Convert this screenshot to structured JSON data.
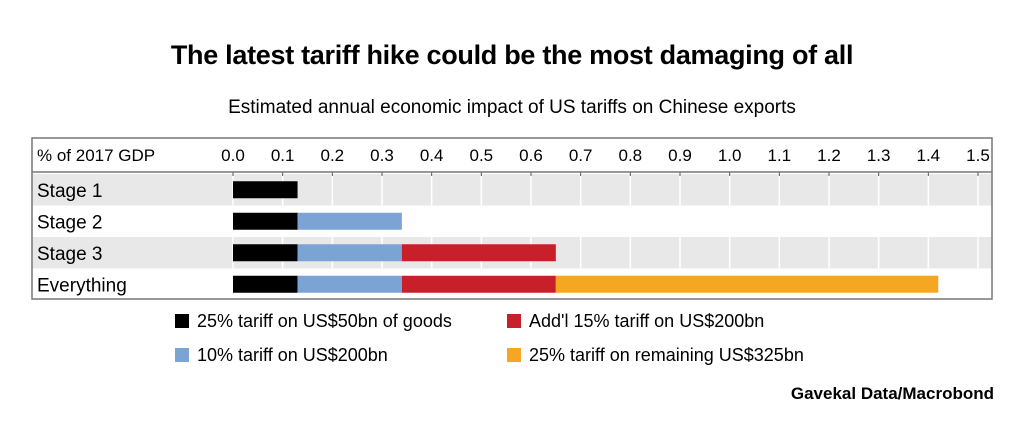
{
  "title": "The latest tariff hike could be the most damaging of all",
  "subtitle": "Estimated annual economic impact of US tariffs on Chinese exports",
  "source": "Gavekal Data/Macrobond",
  "chart_data": {
    "type": "bar",
    "orientation": "horizontal",
    "stacked": true,
    "axis_label": "% of 2017 GDP",
    "xlim": [
      0.0,
      1.5
    ],
    "ticks": [
      "0.0",
      "0.1",
      "0.2",
      "0.3",
      "0.4",
      "0.5",
      "0.6",
      "0.7",
      "0.8",
      "0.9",
      "1.0",
      "1.1",
      "1.2",
      "1.3",
      "1.4",
      "1.5"
    ],
    "tick_position": "top",
    "grid": true,
    "categories": [
      "Stage 1",
      "Stage 2",
      "Stage 3",
      "Everything"
    ],
    "series": [
      {
        "name": "25% tariff on US$50bn of goods",
        "color": "#000000",
        "values": [
          0.13,
          0.13,
          0.13,
          0.13
        ]
      },
      {
        "name": "10% tariff on US$200bn",
        "color": "#7ba4d4",
        "values": [
          0,
          0.21,
          0.21,
          0.21
        ]
      },
      {
        "name": "Add'l 15% tariff on US$200bn",
        "color": "#c8202a",
        "values": [
          0,
          0,
          0.31,
          0.31
        ]
      },
      {
        "name": "25% tariff on remaining US$325bn",
        "color": "#f5a623",
        "values": [
          0,
          0,
          0,
          0.77
        ]
      }
    ],
    "legend_placement": "bottom"
  }
}
